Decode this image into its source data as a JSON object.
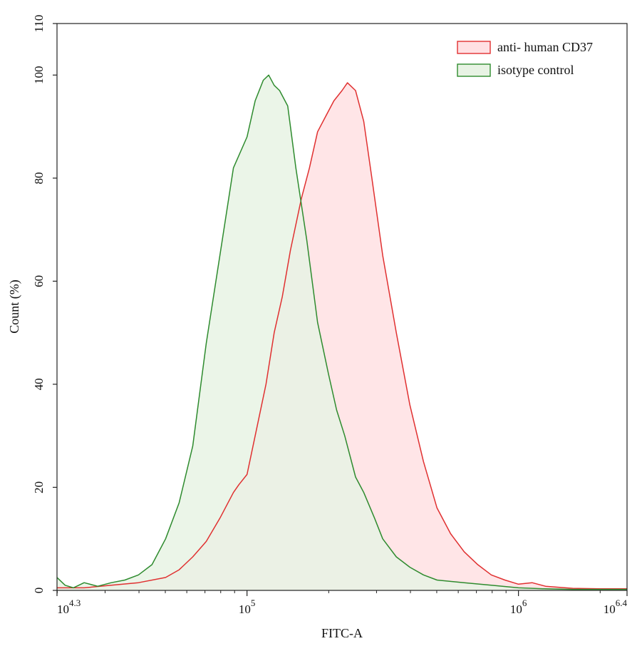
{
  "chart_data": {
    "type": "area",
    "xlabel": "FITC-A",
    "ylabel": "Count  (%)",
    "x_scale": "log10",
    "xlim_log10": [
      4.3,
      6.4
    ],
    "ylim": [
      0,
      110
    ],
    "x_ticks": [
      {
        "log10": 4.3,
        "base": "10",
        "exp": "4.3"
      },
      {
        "log10": 5.0,
        "base": "10",
        "exp": "5"
      },
      {
        "log10": 6.0,
        "base": "10",
        "exp": "6"
      },
      {
        "log10": 6.4,
        "base": "10",
        "exp": "6.4"
      }
    ],
    "y_ticks": [
      "0",
      "20",
      "40",
      "60",
      "80",
      "100",
      "110"
    ],
    "y_tick_values": [
      0,
      20,
      40,
      60,
      80,
      100,
      110
    ],
    "legend_position": "top-right",
    "series": [
      {
        "name": "anti- human CD37",
        "stroke": "#e03030",
        "fill": "#ffe0e3",
        "points": [
          [
            4.3,
            0.5
          ],
          [
            4.4,
            0.5
          ],
          [
            4.5,
            1.0
          ],
          [
            4.6,
            1.5
          ],
          [
            4.7,
            2.5
          ],
          [
            4.75,
            4.0
          ],
          [
            4.8,
            6.5
          ],
          [
            4.85,
            9.5
          ],
          [
            4.9,
            14.0
          ],
          [
            4.95,
            19.0
          ],
          [
            4.97,
            20.5
          ],
          [
            5.0,
            22.5
          ],
          [
            5.03,
            30.0
          ],
          [
            5.07,
            40.0
          ],
          [
            5.1,
            50.0
          ],
          [
            5.13,
            57.0
          ],
          [
            5.16,
            66.0
          ],
          [
            5.2,
            76.0
          ],
          [
            5.23,
            82.0
          ],
          [
            5.26,
            89.0
          ],
          [
            5.29,
            92.0
          ],
          [
            5.32,
            95.0
          ],
          [
            5.35,
            97.0
          ],
          [
            5.37,
            98.5
          ],
          [
            5.4,
            97.0
          ],
          [
            5.43,
            91.0
          ],
          [
            5.46,
            80.0
          ],
          [
            5.5,
            65.0
          ],
          [
            5.55,
            50.0
          ],
          [
            5.6,
            36.0
          ],
          [
            5.65,
            25.0
          ],
          [
            5.7,
            16.0
          ],
          [
            5.75,
            11.0
          ],
          [
            5.8,
            7.5
          ],
          [
            5.85,
            5.0
          ],
          [
            5.9,
            3.0
          ],
          [
            5.95,
            2.0
          ],
          [
            6.0,
            1.2
          ],
          [
            6.05,
            1.5
          ],
          [
            6.1,
            0.8
          ],
          [
            6.2,
            0.4
          ],
          [
            6.3,
            0.3
          ],
          [
            6.4,
            0.3
          ]
        ]
      },
      {
        "name": "isotype control",
        "stroke": "#2e8b2e",
        "fill": "#e8f3e4",
        "points": [
          [
            4.3,
            2.5
          ],
          [
            4.33,
            1.0
          ],
          [
            4.36,
            0.5
          ],
          [
            4.4,
            1.5
          ],
          [
            4.45,
            0.8
          ],
          [
            4.5,
            1.5
          ],
          [
            4.55,
            2.0
          ],
          [
            4.6,
            3.0
          ],
          [
            4.65,
            5.0
          ],
          [
            4.7,
            10.0
          ],
          [
            4.75,
            17.0
          ],
          [
            4.8,
            28.0
          ],
          [
            4.85,
            48.0
          ],
          [
            4.9,
            65.0
          ],
          [
            4.95,
            82.0
          ],
          [
            5.0,
            88.0
          ],
          [
            5.03,
            95.0
          ],
          [
            5.06,
            99.0
          ],
          [
            5.08,
            100.0
          ],
          [
            5.1,
            98.0
          ],
          [
            5.12,
            97.0
          ],
          [
            5.15,
            94.0
          ],
          [
            5.18,
            82.0
          ],
          [
            5.22,
            68.0
          ],
          [
            5.26,
            52.0
          ],
          [
            5.3,
            42.0
          ],
          [
            5.33,
            35.0
          ],
          [
            5.36,
            30.0
          ],
          [
            5.4,
            22.0
          ],
          [
            5.43,
            19.0
          ],
          [
            5.47,
            14.0
          ],
          [
            5.5,
            10.0
          ],
          [
            5.55,
            6.5
          ],
          [
            5.6,
            4.5
          ],
          [
            5.65,
            3.0
          ],
          [
            5.7,
            2.0
          ],
          [
            5.8,
            1.5
          ],
          [
            5.9,
            1.0
          ],
          [
            6.0,
            0.5
          ],
          [
            6.1,
            0.3
          ],
          [
            6.2,
            0.2
          ],
          [
            6.4,
            0.2
          ]
        ]
      }
    ]
  }
}
